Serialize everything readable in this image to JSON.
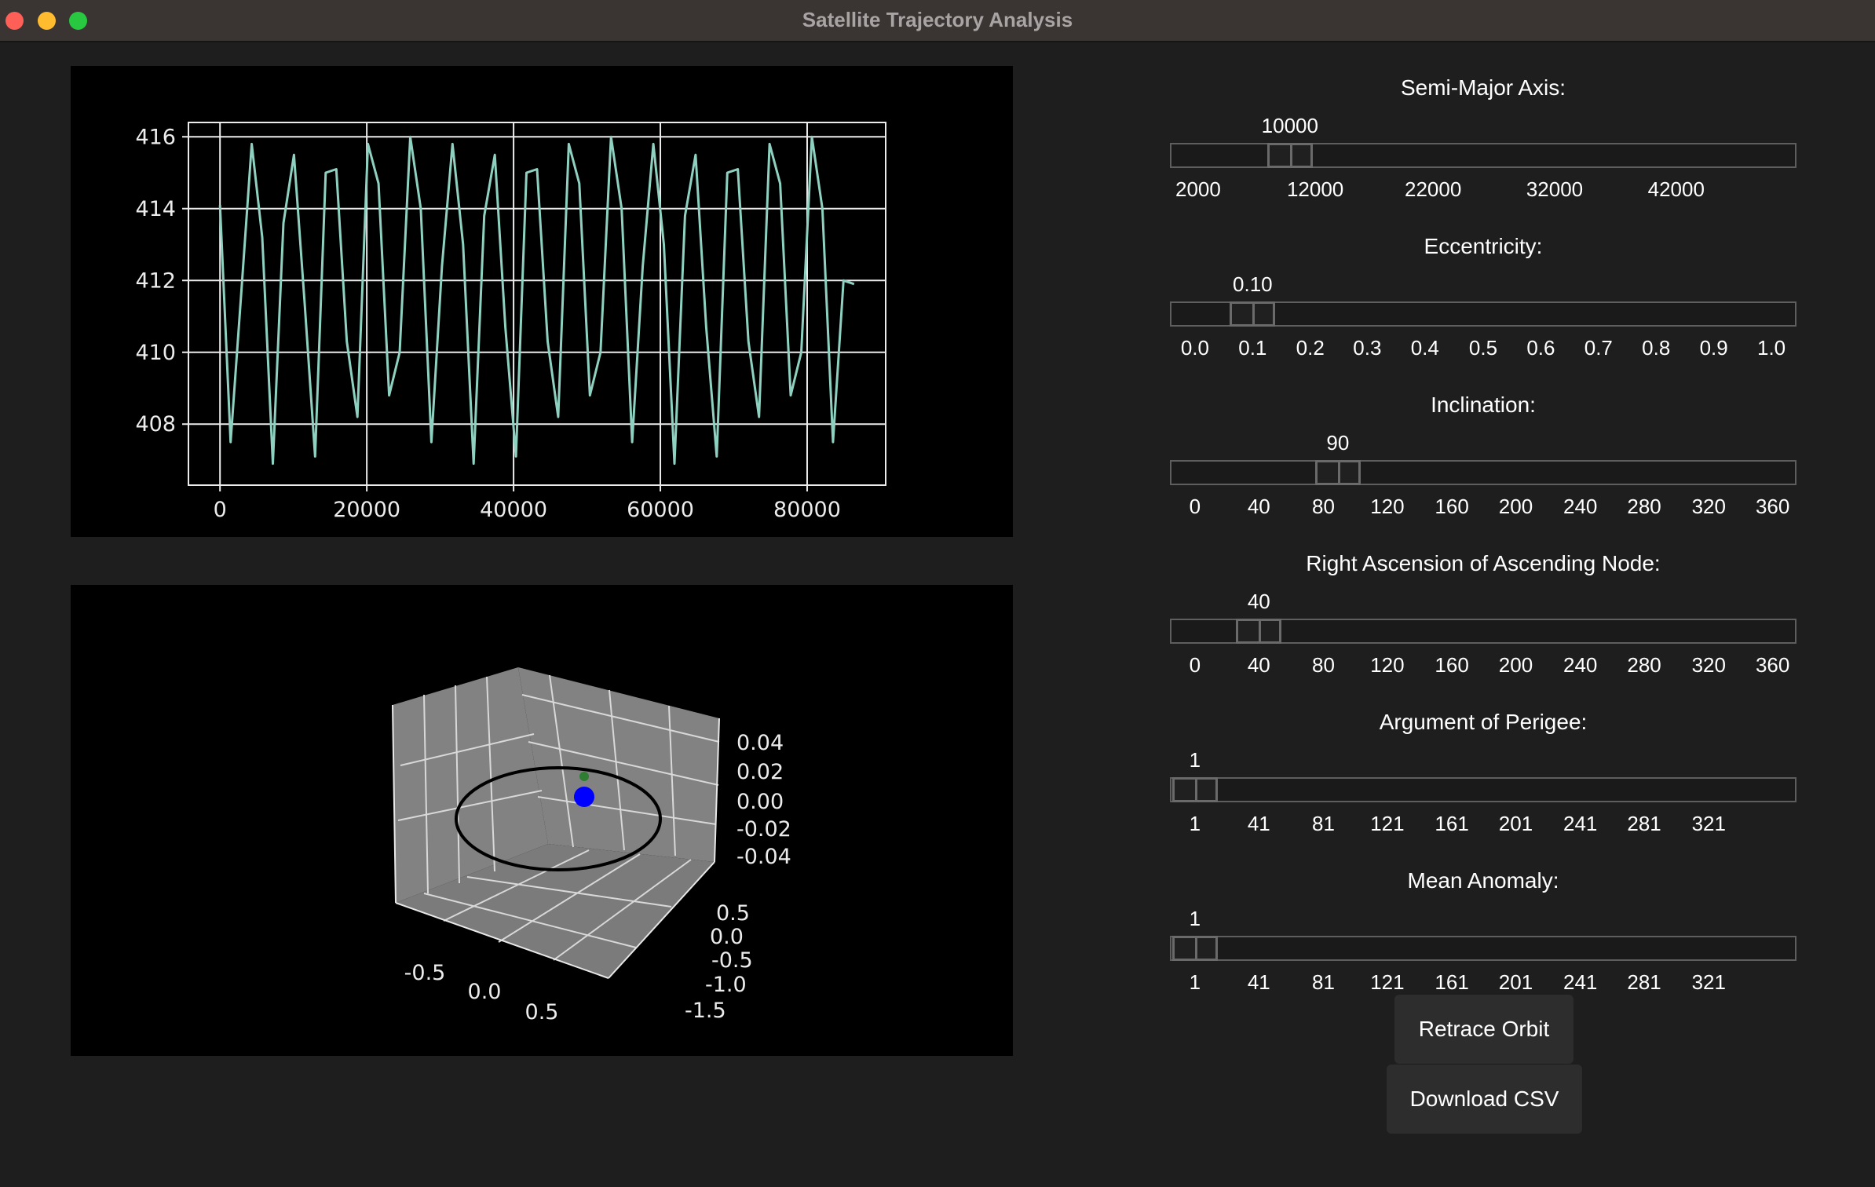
{
  "window": {
    "title": "Satellite Trajectory Analysis"
  },
  "colors": {
    "line": "#8fd1c0",
    "orbit": "#000000",
    "satellite": "#0000ff",
    "perigee_marker": "#2e7d32"
  },
  "chart_data": [
    {
      "type": "line",
      "title": "",
      "xlabel": "",
      "ylabel": "",
      "xlim": [
        -4300,
        90700
      ],
      "ylim": [
        406.3,
        416.4
      ],
      "grid": true,
      "xticks": [
        "0",
        "20000",
        "40000",
        "60000",
        "80000"
      ],
      "yticks": [
        "408",
        "410",
        "412",
        "414",
        "416"
      ],
      "x": [
        0,
        1440,
        2880,
        4320,
        5760,
        7200,
        8640,
        10080,
        11520,
        12960,
        14400,
        15840,
        17280,
        18720,
        20160,
        21600,
        23040,
        24480,
        25920,
        27360,
        28800,
        30240,
        31680,
        33120,
        34560,
        36000,
        37440,
        38880,
        40320,
        41760,
        43200,
        44640,
        46080,
        47520,
        48960,
        50400,
        51840,
        53280,
        54720,
        56160,
        57600,
        59040,
        60480,
        61920,
        63360,
        64800,
        66240,
        67680,
        69120,
        70560,
        72000,
        73440,
        74880,
        76320,
        77760,
        79200,
        80640,
        82080,
        83520,
        84960,
        86400
      ],
      "series": [
        {
          "values": [
            414.1,
            407.5,
            411.6,
            415.8,
            413.2,
            406.9,
            413.6,
            415.5,
            411.4,
            407.1,
            415.0,
            415.1,
            410.3,
            408.2,
            415.8,
            414.7,
            408.8,
            410.0,
            416.0,
            414.0,
            407.5,
            412.4,
            415.8,
            413.0,
            406.9,
            413.8,
            415.5,
            410.7,
            407.1,
            415.0,
            415.1,
            410.3,
            408.2,
            415.8,
            414.7,
            408.8,
            410.0,
            416.0,
            414.0,
            407.5,
            412.4,
            415.8,
            413.0,
            406.9,
            413.8,
            415.5,
            410.7,
            407.1,
            415.0,
            415.1,
            410.3,
            408.2,
            415.8,
            414.7,
            408.8,
            410.0,
            416.0,
            414.0,
            407.5,
            412.0,
            411.9
          ]
        }
      ]
    },
    {
      "type": "scatter",
      "title": "",
      "projection": "3d",
      "x_ticks": [
        "-0.5",
        "0.0",
        "0.5"
      ],
      "y_ticks": [
        "0.5",
        "0.0",
        "-0.5",
        "-1.0",
        "-1.5"
      ],
      "z_ticks": [
        "0.04",
        "0.02",
        "0.00",
        "-0.02",
        "-0.04"
      ],
      "series": [
        {
          "values": []
        }
      ],
      "elements": [
        "orbit-ellipse",
        "earth-point",
        "satellite-point"
      ]
    }
  ],
  "sliders": [
    {
      "label": "Semi-Major Axis:",
      "value": "10000",
      "fraction": 0.1915,
      "ticks": [
        {
          "t": "2000",
          "f": 0.045
        },
        {
          "t": "12000",
          "f": 0.232
        },
        {
          "t": "22000",
          "f": 0.42
        },
        {
          "t": "32000",
          "f": 0.614
        },
        {
          "t": "42000",
          "f": 0.808
        }
      ]
    },
    {
      "label": "Eccentricity:",
      "value": "0.10",
      "fraction": 0.132,
      "ticks": [
        {
          "t": "0.0",
          "f": 0.04
        },
        {
          "t": "0.1",
          "f": 0.132
        },
        {
          "t": "0.2",
          "f": 0.224
        },
        {
          "t": "0.3",
          "f": 0.315
        },
        {
          "t": "0.4",
          "f": 0.407
        },
        {
          "t": "0.5",
          "f": 0.5
        },
        {
          "t": "0.6",
          "f": 0.592
        },
        {
          "t": "0.7",
          "f": 0.684
        },
        {
          "t": "0.8",
          "f": 0.776
        },
        {
          "t": "0.9",
          "f": 0.868
        },
        {
          "t": "1.0",
          "f": 0.96
        }
      ]
    },
    {
      "label": "Inclination:",
      "value": "90",
      "fraction": 0.268,
      "ticks": [
        {
          "t": "0",
          "f": 0.04
        },
        {
          "t": "40",
          "f": 0.142
        },
        {
          "t": "80",
          "f": 0.245
        },
        {
          "t": "120",
          "f": 0.347
        },
        {
          "t": "160",
          "f": 0.45
        },
        {
          "t": "200",
          "f": 0.552
        },
        {
          "t": "240",
          "f": 0.655
        },
        {
          "t": "280",
          "f": 0.757
        },
        {
          "t": "320",
          "f": 0.86
        },
        {
          "t": "360",
          "f": 0.962
        }
      ]
    },
    {
      "label": "Right Ascension of Ascending Node:",
      "value": "40",
      "fraction": 0.142,
      "ticks": [
        {
          "t": "0",
          "f": 0.04
        },
        {
          "t": "40",
          "f": 0.142
        },
        {
          "t": "80",
          "f": 0.245
        },
        {
          "t": "120",
          "f": 0.347
        },
        {
          "t": "160",
          "f": 0.45
        },
        {
          "t": "200",
          "f": 0.552
        },
        {
          "t": "240",
          "f": 0.655
        },
        {
          "t": "280",
          "f": 0.757
        },
        {
          "t": "320",
          "f": 0.86
        },
        {
          "t": "360",
          "f": 0.962
        }
      ]
    },
    {
      "label": "Argument of Perigee:",
      "value": "1",
      "fraction": 0.04,
      "ticks": [
        {
          "t": "1",
          "f": 0.04
        },
        {
          "t": "41",
          "f": 0.142
        },
        {
          "t": "81",
          "f": 0.245
        },
        {
          "t": "121",
          "f": 0.347
        },
        {
          "t": "161",
          "f": 0.45
        },
        {
          "t": "201",
          "f": 0.552
        },
        {
          "t": "241",
          "f": 0.655
        },
        {
          "t": "281",
          "f": 0.757
        },
        {
          "t": "321",
          "f": 0.86
        }
      ]
    },
    {
      "label": "Mean Anomaly:",
      "value": "1",
      "fraction": 0.04,
      "ticks": [
        {
          "t": "1",
          "f": 0.04
        },
        {
          "t": "41",
          "f": 0.142
        },
        {
          "t": "81",
          "f": 0.245
        },
        {
          "t": "121",
          "f": 0.347
        },
        {
          "t": "161",
          "f": 0.45
        },
        {
          "t": "201",
          "f": 0.552
        },
        {
          "t": "241",
          "f": 0.655
        },
        {
          "t": "281",
          "f": 0.757
        },
        {
          "t": "321",
          "f": 0.86
        }
      ]
    }
  ],
  "buttons": {
    "retrace": "Retrace Orbit",
    "download": "Download CSV"
  }
}
